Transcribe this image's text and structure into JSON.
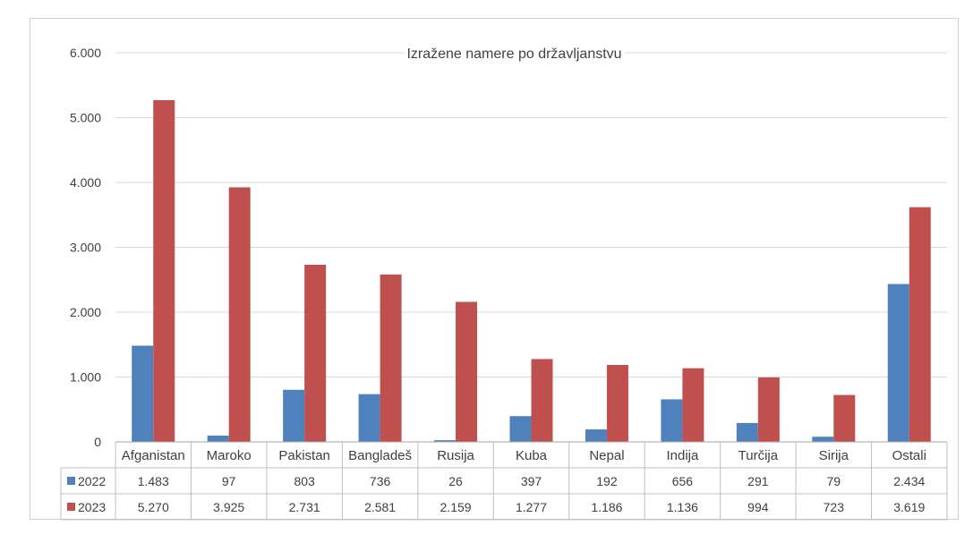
{
  "chart_data": {
    "type": "bar",
    "title": "Izražene namere po državljanstvu",
    "categories": [
      "Afganistan",
      "Maroko",
      "Pakistan",
      "Bangladeš",
      "Rusija",
      "Kuba",
      "Nepal",
      "Indija",
      "Turčija",
      "Sirija",
      "Ostali"
    ],
    "series": [
      {
        "name": "2022",
        "color": "#4f81bd",
        "values": [
          1483,
          97,
          803,
          736,
          26,
          397,
          192,
          656,
          291,
          79,
          2434
        ],
        "labels": [
          "1.483",
          "97",
          "803",
          "736",
          "26",
          "397",
          "192",
          "656",
          "291",
          "79",
          "2.434"
        ]
      },
      {
        "name": "2023",
        "color": "#c0504d",
        "values": [
          5270,
          3925,
          2731,
          2581,
          2159,
          1277,
          1186,
          1136,
          994,
          723,
          3619
        ],
        "labels": [
          "5.270",
          "3.925",
          "2.731",
          "2.581",
          "2.159",
          "1.277",
          "1.186",
          "1.136",
          "994",
          "723",
          "3.619"
        ]
      }
    ],
    "ylim": [
      0,
      6000
    ],
    "yticks": [
      0,
      1000,
      2000,
      3000,
      4000,
      5000,
      6000
    ],
    "ytick_labels": [
      "0",
      "1.000",
      "2.000",
      "3.000",
      "4.000",
      "5.000",
      "6.000"
    ],
    "grid": true,
    "legend": "data-table"
  }
}
